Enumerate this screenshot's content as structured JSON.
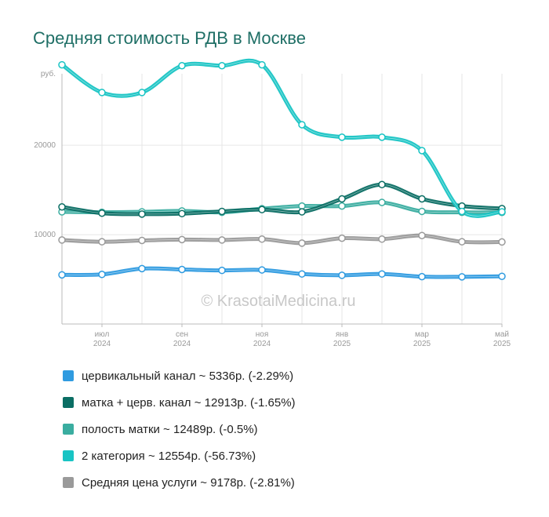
{
  "title": "Средняя стоимость РДВ в Москве",
  "watermark": "© KrasotaiMedicina.ru",
  "chart_data": {
    "type": "line",
    "title": "Средняя стоимость РДВ в Москве",
    "ylabel": "руб.",
    "ylim": [
      0,
      28000
    ],
    "yticks": [
      10000,
      20000
    ],
    "x": [
      "2024-06",
      "2024-07",
      "2024-08",
      "2024-09",
      "2024-10",
      "2024-11",
      "2024-12",
      "2025-01",
      "2025-02",
      "2025-03",
      "2025-04",
      "2025-05"
    ],
    "xtick_labels": [
      {
        "month": "июл",
        "year": "2024",
        "index": 1
      },
      {
        "month": "сен",
        "year": "2024",
        "index": 3
      },
      {
        "month": "ноя",
        "year": "2024",
        "index": 5
      },
      {
        "month": "янв",
        "year": "2025",
        "index": 7
      },
      {
        "month": "мар",
        "year": "2025",
        "index": 9
      },
      {
        "month": "май",
        "year": "2025",
        "index": 11
      }
    ],
    "grid": true,
    "legend_position": "bottom",
    "series": [
      {
        "name": "цервикальный канал",
        "color": "#2f9be0",
        "values": [
          5500,
          5550,
          6200,
          6100,
          6000,
          6050,
          5600,
          5450,
          5600,
          5300,
          5280,
          5336
        ]
      },
      {
        "name": "матка + церв. канал",
        "color": "#0b6e64",
        "values": [
          13100,
          12400,
          12300,
          12350,
          12600,
          12800,
          12550,
          14000,
          15600,
          14000,
          13200,
          12913
        ]
      },
      {
        "name": "полость матки",
        "color": "#3aada0",
        "values": [
          12550,
          12500,
          12550,
          12650,
          12500,
          12900,
          13200,
          13200,
          13600,
          12600,
          12500,
          12489
        ]
      },
      {
        "name": "2 категория",
        "color": "#18c4c4",
        "values": [
          29000,
          25900,
          25900,
          28900,
          28900,
          29000,
          22300,
          20900,
          20900,
          19400,
          12600,
          12554
        ]
      },
      {
        "name": "Средняя цена услуги",
        "color": "#9a9a9a",
        "values": [
          9400,
          9200,
          9350,
          9450,
          9400,
          9500,
          9050,
          9600,
          9500,
          9900,
          9200,
          9178
        ]
      }
    ]
  },
  "legend": [
    {
      "color": "#2f9be0",
      "label": "цервикальный канал ~ 5336р. (-2.29%)"
    },
    {
      "color": "#0b6e64",
      "label": "матка + церв. канал ~ 12913р. (-1.65%)"
    },
    {
      "color": "#3aada0",
      "label": "полость матки ~ 12489р. (-0.5%)"
    },
    {
      "color": "#18c4c4",
      "label": "2 категория ~ 12554р. (-56.73%)"
    },
    {
      "color": "#9a9a9a",
      "label": "Средняя цена услуги ~ 9178р. (-2.81%)"
    }
  ]
}
